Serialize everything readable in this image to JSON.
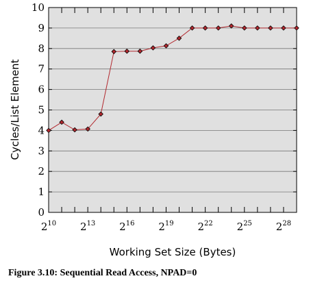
{
  "chart_data": {
    "type": "line",
    "xlabel": "Working Set Size (Bytes)",
    "ylabel": "Cycles/List Element",
    "x_scale": "log2",
    "x_tick_base": "2",
    "x_tick_exponents": [
      10,
      13,
      16,
      19,
      22,
      25,
      28
    ],
    "x_range_exponents": [
      10,
      29
    ],
    "ylim": [
      0,
      10
    ],
    "y_ticks": [
      0,
      1,
      2,
      3,
      4,
      5,
      6,
      7,
      8,
      9,
      10
    ],
    "grid": true,
    "plot_background": "#e0e0e0",
    "line_color": "#b2282e",
    "marker_color": "#b2282e",
    "series": [
      {
        "x_exponents": [
          10,
          11,
          12,
          13,
          14,
          15,
          16,
          17,
          18,
          19,
          20,
          21,
          22,
          23,
          24,
          25,
          26,
          27,
          28,
          29
        ],
        "values": [
          4.0,
          4.4,
          4.03,
          4.07,
          4.8,
          7.85,
          7.87,
          7.87,
          8.03,
          8.13,
          8.5,
          9.0,
          9.0,
          9.0,
          9.1,
          9.0,
          9.0,
          9.0,
          9.0,
          9.0
        ]
      }
    ]
  },
  "caption": "Figure 3.10: Sequential Read Access, NPAD=0"
}
